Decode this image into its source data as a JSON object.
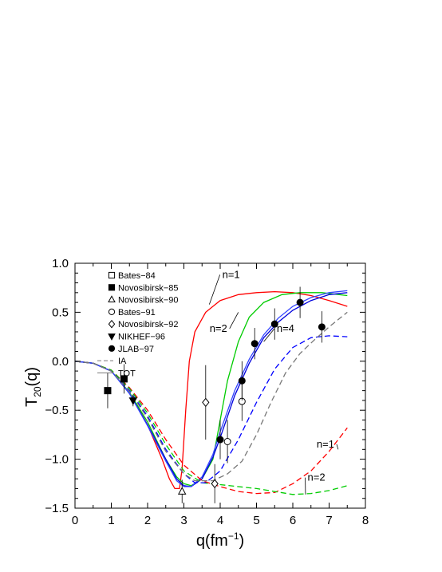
{
  "chart_data": {
    "type": "scatter",
    "title": "",
    "xlabel": "q(fm",
    "xlabel_sup": "−1",
    "xlabel_close": ")",
    "ylabel": "T",
    "ylabel_sub": "20",
    "ylabel_arg": "(q)",
    "xlim": [
      0,
      8
    ],
    "ylim": [
      -1.5,
      1.0
    ],
    "xticks": [
      0,
      1,
      2,
      3,
      4,
      5,
      6,
      7,
      8
    ],
    "yticks": [
      -1.5,
      -1.0,
      -0.5,
      0.0,
      0.5,
      1.0
    ],
    "xtick_labels": [
      "0",
      "1",
      "2",
      "3",
      "4",
      "5",
      "6",
      "7",
      "8"
    ],
    "ytick_labels": [
      "−1.5",
      "−1.0",
      "−0.5",
      "0.0",
      "0.5",
      "1.0"
    ],
    "grid": false,
    "legend_position": "top-left",
    "legend": [
      {
        "label": "Bates−84",
        "marker": "open-square"
      },
      {
        "label": "Novosibirsk−85",
        "marker": "filled-square"
      },
      {
        "label": "Novosibirsk−90",
        "marker": "open-triangle"
      },
      {
        "label": "Bates−91",
        "marker": "open-circle"
      },
      {
        "label": "Novosibirsk−92",
        "marker": "open-diamond"
      },
      {
        "label": "NIKHEF−96",
        "marker": "filled-triangle-down"
      },
      {
        "label": "JLAB−97",
        "marker": "filled-circle"
      },
      {
        "label": "IA",
        "marker": "dashed-line"
      },
      {
        "label": "TOT",
        "marker": "solid-line"
      }
    ],
    "data_series": [
      {
        "name": "Novosibirsk−85",
        "marker": "filled-square",
        "points": [
          [
            0.9,
            -0.3,
            0.18
          ],
          [
            1.35,
            -0.18,
            0.15
          ]
        ]
      },
      {
        "name": "NIKHEF−96",
        "marker": "filled-triangle-down",
        "points": [
          [
            1.6,
            -0.4,
            0.06
          ]
        ]
      },
      {
        "name": "Novosibirsk−90",
        "marker": "open-triangle",
        "points": [
          [
            2.95,
            -1.33,
            0.12
          ]
        ]
      },
      {
        "name": "Novosibirsk−92",
        "marker": "open-diamond",
        "points": [
          [
            3.6,
            -0.42,
            0.38
          ],
          [
            3.85,
            -1.25,
            0.2
          ]
        ]
      },
      {
        "name": "Bates−91",
        "marker": "open-circle",
        "points": [
          [
            4.2,
            -0.82,
            0.22
          ],
          [
            4.6,
            -0.41,
            0.2
          ]
        ]
      },
      {
        "name": "JLAB−97",
        "marker": "filled-circle",
        "points": [
          [
            4.0,
            -0.8,
            0.2
          ],
          [
            4.6,
            -0.2,
            0.2
          ],
          [
            4.95,
            0.18,
            0.16
          ],
          [
            5.5,
            0.38,
            0.16
          ],
          [
            6.2,
            0.6,
            0.16
          ],
          [
            6.8,
            0.35,
            0.16
          ]
        ]
      }
    ],
    "curves": [
      {
        "color": "#ff0000",
        "style": "solid",
        "points": [
          [
            0,
            0
          ],
          [
            0.5,
            -0.02
          ],
          [
            1,
            -0.1
          ],
          [
            1.5,
            -0.32
          ],
          [
            2,
            -0.65
          ],
          [
            2.4,
            -1.0
          ],
          [
            2.6,
            -1.2
          ],
          [
            2.75,
            -1.3
          ],
          [
            2.88,
            -1.3
          ],
          [
            2.95,
            -1.1
          ],
          [
            3.05,
            -0.5
          ],
          [
            3.15,
            0.0
          ],
          [
            3.3,
            0.3
          ],
          [
            3.6,
            0.5
          ],
          [
            4.0,
            0.62
          ],
          [
            4.5,
            0.68
          ],
          [
            5.0,
            0.7
          ],
          [
            5.5,
            0.71
          ],
          [
            6.0,
            0.7
          ],
          [
            6.5,
            0.67
          ],
          [
            7.0,
            0.62
          ],
          [
            7.5,
            0.56
          ]
        ]
      },
      {
        "color": "#00cc00",
        "style": "solid",
        "points": [
          [
            0,
            0
          ],
          [
            0.5,
            -0.02
          ],
          [
            1,
            -0.1
          ],
          [
            1.5,
            -0.32
          ],
          [
            2,
            -0.62
          ],
          [
            2.5,
            -1.0
          ],
          [
            2.8,
            -1.18
          ],
          [
            3.0,
            -1.25
          ],
          [
            3.2,
            -1.27
          ],
          [
            3.5,
            -1.2
          ],
          [
            3.8,
            -1.0
          ],
          [
            4.0,
            -0.6
          ],
          [
            4.2,
            -0.2
          ],
          [
            4.5,
            0.2
          ],
          [
            4.8,
            0.45
          ],
          [
            5.2,
            0.6
          ],
          [
            5.7,
            0.68
          ],
          [
            6.2,
            0.7
          ],
          [
            6.8,
            0.7
          ],
          [
            7.5,
            0.67
          ]
        ]
      },
      {
        "color": "#0000dd",
        "style": "solid",
        "points": [
          [
            0,
            0
          ],
          [
            0.5,
            -0.02
          ],
          [
            1,
            -0.1
          ],
          [
            1.5,
            -0.33
          ],
          [
            2,
            -0.65
          ],
          [
            2.5,
            -1.0
          ],
          [
            2.8,
            -1.2
          ],
          [
            3.0,
            -1.27
          ],
          [
            3.2,
            -1.28
          ],
          [
            3.5,
            -1.2
          ],
          [
            3.8,
            -0.98
          ],
          [
            4.0,
            -0.78
          ],
          [
            4.4,
            -0.35
          ],
          [
            4.8,
            -0.02
          ],
          [
            5.2,
            0.24
          ],
          [
            5.6,
            0.4
          ],
          [
            6.0,
            0.52
          ],
          [
            6.5,
            0.62
          ],
          [
            7.0,
            0.68
          ],
          [
            7.5,
            0.7
          ]
        ]
      },
      {
        "color": "#3344ff",
        "style": "solid",
        "points": [
          [
            0,
            0
          ],
          [
            0.5,
            -0.02
          ],
          [
            1,
            -0.1
          ],
          [
            1.5,
            -0.33
          ],
          [
            2,
            -0.66
          ],
          [
            2.5,
            -1.02
          ],
          [
            2.8,
            -1.22
          ],
          [
            3.0,
            -1.28
          ],
          [
            3.2,
            -1.28
          ],
          [
            3.5,
            -1.18
          ],
          [
            3.8,
            -0.95
          ],
          [
            4.0,
            -0.72
          ],
          [
            4.4,
            -0.3
          ],
          [
            4.8,
            0.02
          ],
          [
            5.2,
            0.27
          ],
          [
            5.6,
            0.44
          ],
          [
            6.0,
            0.56
          ],
          [
            6.5,
            0.65
          ],
          [
            7.0,
            0.7
          ],
          [
            7.5,
            0.72
          ]
        ]
      },
      {
        "color": "#ff0000",
        "style": "dashed",
        "points": [
          [
            0,
            0
          ],
          [
            0.5,
            -0.02
          ],
          [
            1,
            -0.09
          ],
          [
            1.5,
            -0.27
          ],
          [
            2,
            -0.5
          ],
          [
            2.5,
            -0.8
          ],
          [
            3.0,
            -1.06
          ],
          [
            3.5,
            -1.22
          ],
          [
            4.0,
            -1.28
          ],
          [
            4.5,
            -1.33
          ],
          [
            5.0,
            -1.35
          ],
          [
            5.5,
            -1.34
          ],
          [
            6.0,
            -1.25
          ],
          [
            6.5,
            -1.12
          ],
          [
            7.0,
            -0.92
          ],
          [
            7.5,
            -0.68
          ]
        ]
      },
      {
        "color": "#00cc00",
        "style": "dashed",
        "points": [
          [
            0,
            0
          ],
          [
            0.5,
            -0.02
          ],
          [
            1,
            -0.09
          ],
          [
            1.5,
            -0.28
          ],
          [
            2,
            -0.53
          ],
          [
            2.5,
            -0.85
          ],
          [
            3.0,
            -1.12
          ],
          [
            3.5,
            -1.24
          ],
          [
            4.0,
            -1.26
          ],
          [
            4.5,
            -1.28
          ],
          [
            5.0,
            -1.3
          ],
          [
            5.5,
            -1.33
          ],
          [
            6.0,
            -1.36
          ],
          [
            6.5,
            -1.35
          ],
          [
            7.0,
            -1.32
          ],
          [
            7.5,
            -1.27
          ]
        ]
      },
      {
        "color": "#0000ff",
        "style": "dashed",
        "points": [
          [
            0,
            0
          ],
          [
            0.5,
            -0.02
          ],
          [
            1,
            -0.1
          ],
          [
            1.5,
            -0.3
          ],
          [
            2,
            -0.56
          ],
          [
            2.5,
            -0.9
          ],
          [
            3.0,
            -1.15
          ],
          [
            3.3,
            -1.24
          ],
          [
            3.6,
            -1.24
          ],
          [
            4.0,
            -1.12
          ],
          [
            4.5,
            -0.8
          ],
          [
            5.0,
            -0.42
          ],
          [
            5.5,
            -0.08
          ],
          [
            6.0,
            0.14
          ],
          [
            6.5,
            0.24
          ],
          [
            7.0,
            0.26
          ],
          [
            7.5,
            0.25
          ]
        ]
      },
      {
        "color": "#777777",
        "style": "dashed",
        "points": [
          [
            0,
            0
          ],
          [
            0.5,
            -0.02
          ],
          [
            1,
            -0.1
          ],
          [
            1.5,
            -0.31
          ],
          [
            2,
            -0.58
          ],
          [
            2.5,
            -0.92
          ],
          [
            3.0,
            -1.15
          ],
          [
            3.3,
            -1.22
          ],
          [
            3.8,
            -1.22
          ],
          [
            4.2,
            -1.15
          ],
          [
            4.6,
            -1.02
          ],
          [
            5.0,
            -0.75
          ],
          [
            5.4,
            -0.42
          ],
          [
            5.8,
            -0.12
          ],
          [
            6.2,
            0.08
          ],
          [
            6.6,
            0.22
          ],
          [
            7.0,
            0.35
          ],
          [
            7.5,
            0.5
          ]
        ]
      }
    ],
    "annotations": [
      {
        "text": "n=1",
        "x": 4.3,
        "y": 0.85,
        "to_x": 3.7,
        "to_y": 0.58
      },
      {
        "text": "n=2",
        "x": 3.95,
        "y": 0.3,
        "to_x": 4.5,
        "to_y": 0.5
      },
      {
        "text": "n=4",
        "x": 5.8,
        "y": 0.3,
        "to_x": 5.2,
        "to_y": 0.2
      },
      {
        "text": "n=1",
        "x": 6.9,
        "y": -0.88,
        "to_x": 7.25,
        "to_y": -0.9
      },
      {
        "text": "n=2",
        "x": 6.65,
        "y": -1.22,
        "to_x": 6.35,
        "to_y": -1.36
      }
    ]
  }
}
